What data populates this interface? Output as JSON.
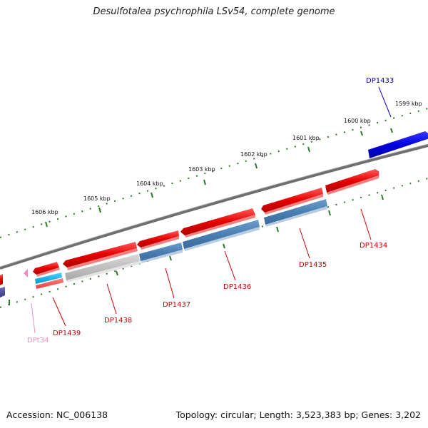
{
  "title": "Desulfotalea psychrophila LSv54, complete genome",
  "accession": "Accession: NC_006138",
  "topology": "Topology: circular; Length: 3,523,383 bp; Genes: 3,202",
  "kbp_labels": [
    "1599 kbp",
    "1600 kbp",
    "1601 kbp",
    "1602 kbp",
    "1603 kbp",
    "1604 kbp",
    "1605 kbp",
    "1606 kbp"
  ],
  "colors": {
    "cds_forward": "#e60000",
    "cds_reverse_steel": "#4a7fb3",
    "cds_blue": "#0000dd",
    "trna_pink": "#f08cc0",
    "backbone": "#777777",
    "ticks": "#2a7a2a",
    "grey_feature": "#b8b8b8",
    "cyan_feature": "#00b4e6",
    "navy_feature": "#4d4d99"
  },
  "genes": [
    {
      "name": "DP1433",
      "color": "#0000cc"
    },
    {
      "name": "DP1434",
      "color": "#cc0000"
    },
    {
      "name": "DP1435",
      "color": "#cc0000"
    },
    {
      "name": "DP1436",
      "color": "#cc0000"
    },
    {
      "name": "DP1437",
      "color": "#cc0000"
    },
    {
      "name": "DP1438",
      "color": "#cc0000"
    },
    {
      "name": "DP1439",
      "color": "#cc0000"
    },
    {
      "name": "DPt34",
      "color": "#e890c0"
    }
  ]
}
